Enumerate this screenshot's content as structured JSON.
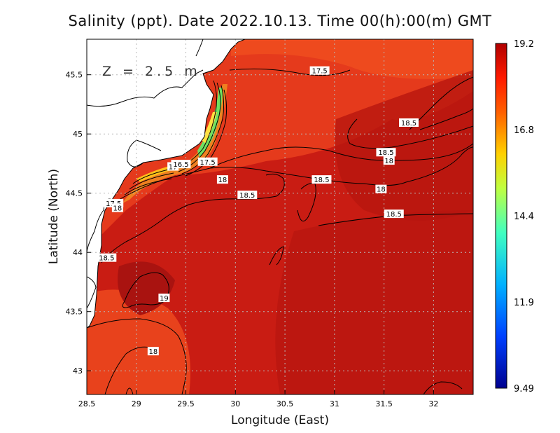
{
  "title": "Salinity (ppt). Date 2022.10.13. Time 00(h):00(m) GMT",
  "depth_label": "Z = 2.5 m",
  "x_axis": {
    "label": "Longitude (East)",
    "ticks": [
      "28.5",
      "29",
      "29.5",
      "30",
      "30.5",
      "31",
      "31.5",
      "32"
    ]
  },
  "y_axis": {
    "label": "Latitude (North)",
    "ticks": [
      "43",
      "43.5",
      "44",
      "44.5",
      "45",
      "45.5"
    ]
  },
  "colorbar": {
    "labels": [
      "19.2",
      "16.8",
      "14.4",
      "11.9",
      "9.49"
    ],
    "min": 9.49,
    "max": 19.2
  },
  "contour_labels": [
    {
      "text": "17.5",
      "lon": 30.85,
      "lat": 45.53
    },
    {
      "text": "18.5",
      "lon": 31.75,
      "lat": 45.09
    },
    {
      "text": "18.5",
      "lon": 31.52,
      "lat": 44.84
    },
    {
      "text": "18",
      "lon": 31.55,
      "lat": 44.77
    },
    {
      "text": "18.5",
      "lon": 30.87,
      "lat": 44.61
    },
    {
      "text": "18",
      "lon": 29.87,
      "lat": 44.61
    },
    {
      "text": "18.5",
      "lon": 30.12,
      "lat": 44.48
    },
    {
      "text": "18",
      "lon": 31.47,
      "lat": 44.53
    },
    {
      "text": "18.5",
      "lon": 31.6,
      "lat": 44.32
    },
    {
      "text": "17.5",
      "lon": 29.72,
      "lat": 44.76
    },
    {
      "text": "17",
      "lon": 29.37,
      "lat": 44.72
    },
    {
      "text": "16.5",
      "lon": 29.45,
      "lat": 44.74
    },
    {
      "text": "17.5",
      "lon": 28.77,
      "lat": 44.41
    },
    {
      "text": "18",
      "lon": 28.81,
      "lat": 44.37
    },
    {
      "text": "18.5",
      "lon": 28.7,
      "lat": 43.95
    },
    {
      "text": "19",
      "lon": 29.28,
      "lat": 43.61
    },
    {
      "text": "18",
      "lon": 29.17,
      "lat": 43.16
    }
  ]
}
